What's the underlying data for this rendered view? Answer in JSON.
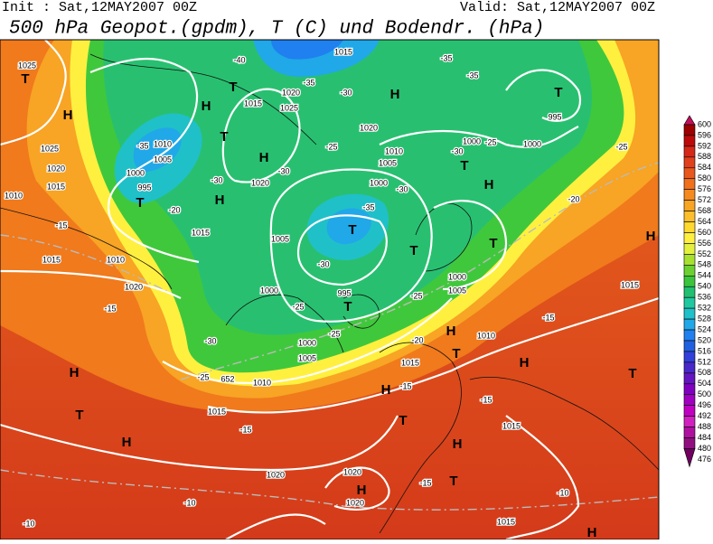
{
  "header": {
    "init": "Init : Sat,12MAY2007 00Z",
    "valid": "Valid: Sat,12MAY2007 00Z",
    "title": "500 hPa Geopot.(gpdm), T (C) und Bodendr. (hPa)"
  },
  "colorbar": {
    "levels": [
      600,
      596,
      592,
      588,
      584,
      580,
      576,
      572,
      568,
      564,
      560,
      556,
      552,
      548,
      544,
      540,
      536,
      532,
      528,
      524,
      520,
      516,
      512,
      508,
      504,
      500,
      496,
      492,
      488,
      484,
      480,
      476
    ],
    "colors": [
      "#c0105a",
      "#9c0000",
      "#bc0a0a",
      "#d42818",
      "#e0401c",
      "#e8581e",
      "#f0701c",
      "#f48a20",
      "#f8a424",
      "#fcbe2c",
      "#ffd830",
      "#fff040",
      "#e4f040",
      "#a8e030",
      "#6cd030",
      "#3cc43c",
      "#20c070",
      "#20c8a0",
      "#20c0c8",
      "#20a8e8",
      "#2080f0",
      "#2060e0",
      "#3040d8",
      "#4828c8",
      "#6414c0",
      "#8000c0",
      "#a000c0",
      "#c000c0",
      "#d020c0",
      "#b010a0",
      "#901080",
      "#700060"
    ]
  },
  "map_labels": [
    "1025",
    "T",
    "H",
    "1025",
    "1020",
    "1015",
    "1010",
    "-15",
    "1015",
    "1010",
    "1020",
    "-15",
    "H",
    "T",
    "H",
    "1015",
    "-15",
    "1020",
    "-10",
    "-10",
    "1010",
    "-25",
    "652",
    "-40",
    "T",
    "H",
    "1015",
    "1020",
    "1025",
    "-35",
    "-30",
    "H",
    "1020",
    "T",
    "-35",
    "1010",
    "1005",
    "1000",
    "995",
    "T",
    "-20",
    "H",
    "1020",
    "-30",
    "H",
    "-30",
    "-25",
    "1010",
    "1005",
    "1000",
    "-30",
    "-35",
    "T",
    "-30",
    "1005",
    "1015",
    "1000",
    "-25",
    "995",
    "T",
    "-25",
    "1000",
    "1005",
    "-30",
    "-20",
    "-25",
    "T",
    "1000",
    "1005",
    "T",
    "H",
    "-35",
    "-35",
    "T",
    "995",
    "1000",
    "1000",
    "-25",
    "T",
    "-30",
    "-25",
    "-20",
    "H",
    "1015",
    "-15",
    "1010",
    "H",
    "T",
    "H",
    "T",
    "1015",
    "H",
    "-15",
    "T",
    "-15",
    "1015",
    "H",
    "T",
    "1020",
    "H",
    "1020",
    "-15",
    "-10",
    "1015",
    "H",
    "1015"
  ]
}
